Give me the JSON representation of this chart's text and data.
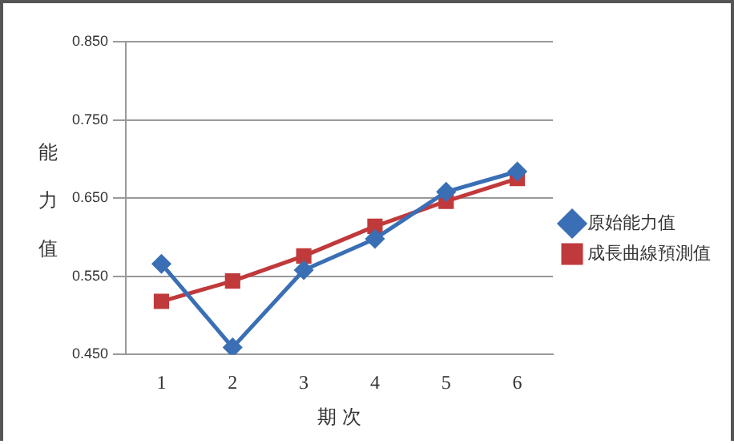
{
  "chart_data": {
    "type": "line",
    "xlabel": "期 次",
    "ylabel": "能力值",
    "categories": [
      "1",
      "2",
      "3",
      "4",
      "5",
      "6"
    ],
    "series": [
      {
        "name": "原始能力值",
        "color": "#3a6fb5",
        "marker": "diamond",
        "values": [
          0.566,
          0.459,
          0.558,
          0.598,
          0.658,
          0.684
        ]
      },
      {
        "name": "成長曲線預測值",
        "color": "#c0393b",
        "marker": "square",
        "values": [
          0.518,
          0.544,
          0.576,
          0.614,
          0.646,
          0.675
        ]
      }
    ],
    "ylim": [
      0.45,
      0.85
    ],
    "yticks": [
      {
        "value": 0.45,
        "label": "0.450"
      },
      {
        "value": 0.55,
        "label": "0.550"
      },
      {
        "value": 0.65,
        "label": "0.650"
      },
      {
        "value": 0.75,
        "label": "0.750"
      },
      {
        "value": 0.85,
        "label": "0.850"
      }
    ],
    "grid": "y",
    "legend": "right"
  }
}
